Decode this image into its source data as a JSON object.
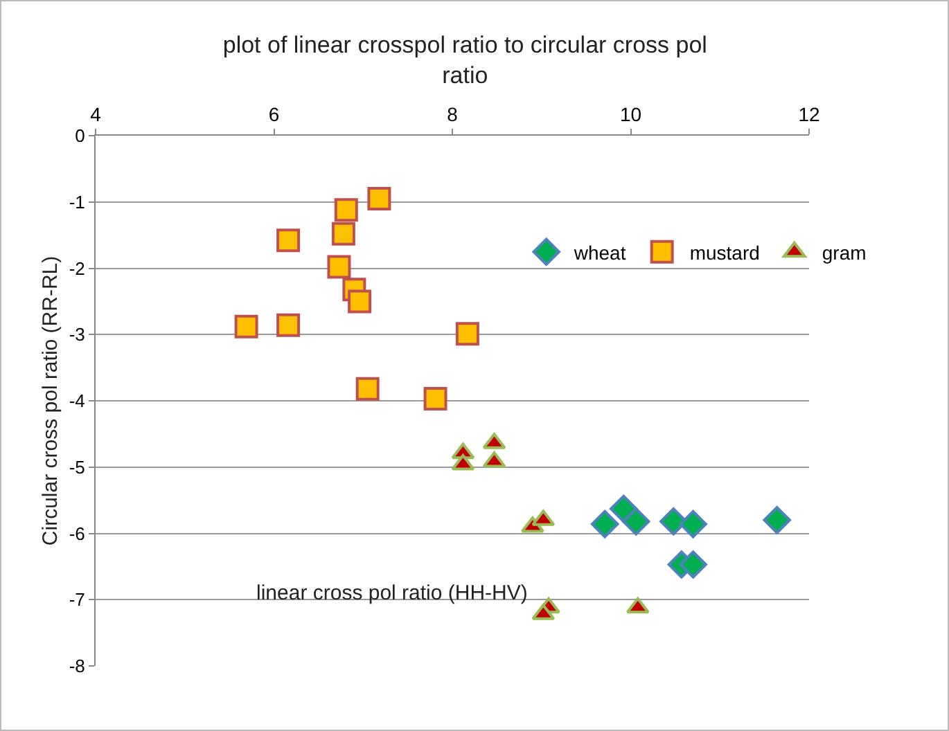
{
  "chart_data": {
    "type": "scatter",
    "title": "plot of linear crosspol ratio to circular cross pol ratio",
    "xlabel": "linear cross pol ratio (HH-HV)",
    "ylabel": "Circular cross pol ratio (RR-RL)",
    "xlim": [
      4,
      12
    ],
    "xticks": [
      4,
      6,
      8,
      10,
      12
    ],
    "ylim": [
      -8,
      0
    ],
    "yticks": [
      0,
      -1,
      -2,
      -3,
      -4,
      -5,
      -6,
      -7,
      -8
    ],
    "grid": "y",
    "legend": "top right",
    "series": [
      {
        "name": "wheat",
        "color": "#00b050",
        "marker": "diamond",
        "x": [
          9.71,
          9.92,
          10.06,
          10.48,
          10.7,
          10.57,
          10.7,
          11.64
        ],
        "values": [
          -5.86,
          -5.63,
          -5.82,
          -5.82,
          -5.86,
          -6.47,
          -6.47,
          -5.8
        ]
      },
      {
        "name": "mustard",
        "color": "#ffc000",
        "marker": "square",
        "x": [
          7.18,
          6.81,
          6.78,
          6.16,
          6.73,
          6.9,
          6.96,
          5.69,
          6.16,
          8.17,
          7.05,
          7.81
        ],
        "values": [
          -0.95,
          -1.12,
          -1.48,
          -1.58,
          -1.98,
          -2.32,
          -2.5,
          -2.88,
          -2.86,
          -2.99,
          -3.82,
          -3.97
        ]
      },
      {
        "name": "gram",
        "color": "#c00000",
        "marker": "triangle",
        "x": [
          8.12,
          8.12,
          8.47,
          8.47,
          8.9,
          9.02,
          9.08,
          9.02,
          10.08
        ],
        "values": [
          -4.79,
          -4.96,
          -4.64,
          -4.92,
          -5.9,
          -5.8,
          -7.12,
          -7.22,
          -7.12
        ]
      }
    ]
  }
}
